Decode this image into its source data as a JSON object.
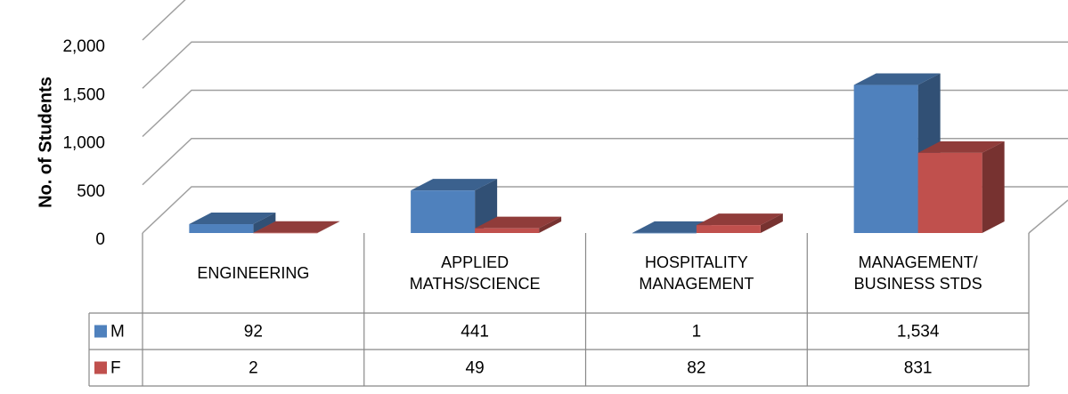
{
  "chart_data": {
    "type": "bar3d",
    "ylabel": "No. of Students",
    "categories": [
      "ENGINEERING",
      "APPLIED\nMATHS/SCIENCE",
      "HOSPITALITY\nMANAGEMENT",
      "MANAGEMENT/\nBUSINESS   STDS"
    ],
    "series": [
      {
        "name": "M",
        "color": "#4f81bd",
        "values": [
          92,
          441,
          1,
          1534
        ],
        "value_labels": [
          "92",
          "441",
          "1",
          "1,534"
        ]
      },
      {
        "name": "F",
        "color": "#c0504d",
        "values": [
          2,
          49,
          82,
          831
        ],
        "value_labels": [
          "2",
          "49",
          "82",
          "831"
        ]
      }
    ],
    "ylim": [
      0,
      2000
    ],
    "yticks": [
      0,
      500,
      {
        "value": 1000,
        "label": "1,000"
      },
      {
        "value": 1500,
        "label": "1,500"
      },
      {
        "value": 2000,
        "label": "2,000"
      }
    ],
    "grid": true
  }
}
